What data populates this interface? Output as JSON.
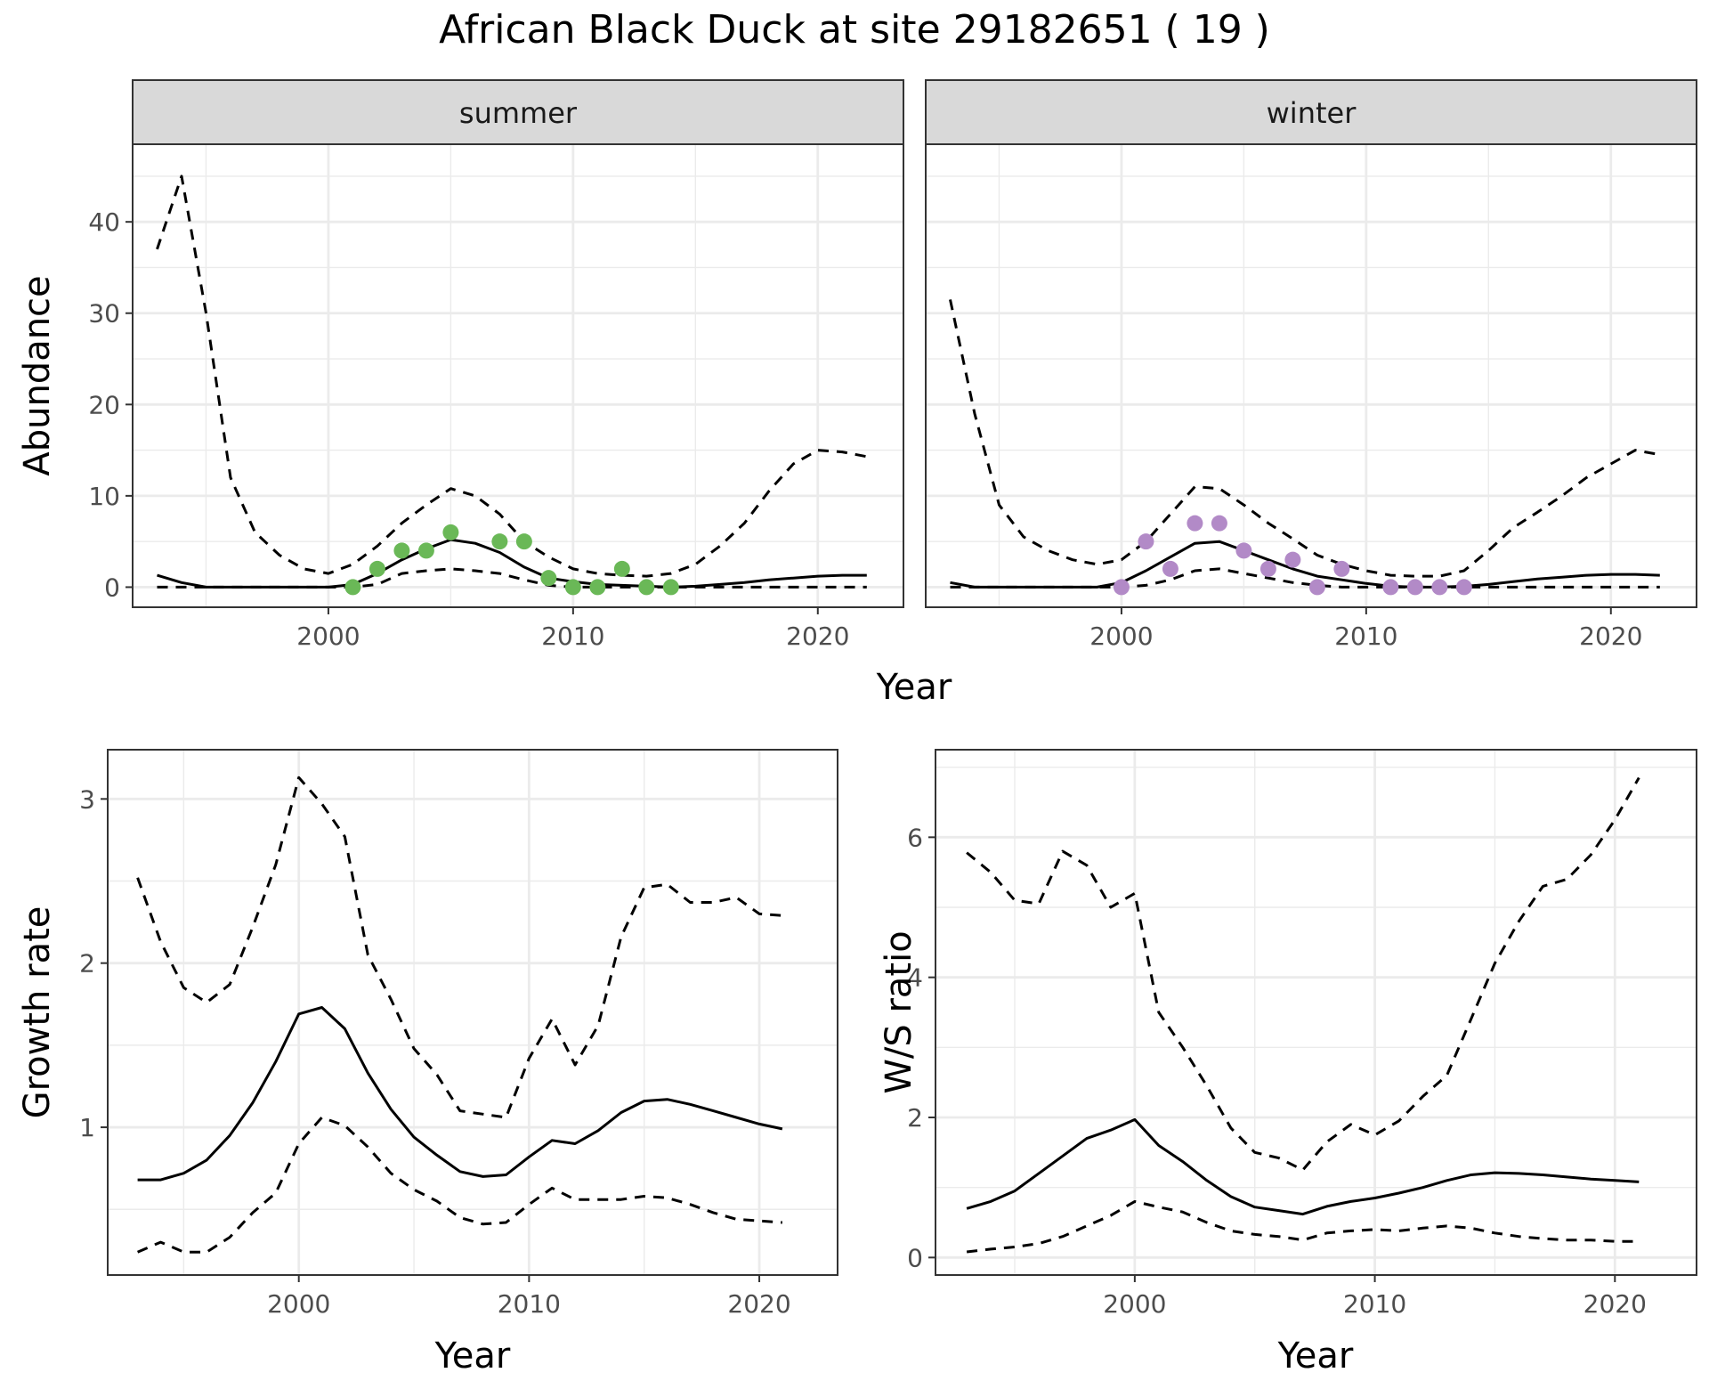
{
  "figure": {
    "title": "African Black Duck at site 29182651 ( 19 )",
    "colors": {
      "summer_points": "#6ab857",
      "winter_points": "#b28ac7",
      "line": "#000000",
      "strip_bg": "#d9d9d9",
      "grid": "#ebebeb"
    }
  },
  "chart_data": [
    {
      "type": "line",
      "facet": "summer",
      "xlabel": "Year",
      "ylabel": "Abundance",
      "xlim": [
        1992,
        2023.5
      ],
      "ylim": [
        -2.2,
        48.5
      ],
      "xticks": [
        2000,
        2010,
        2020
      ],
      "yticks": [
        0,
        10,
        20,
        30,
        40
      ],
      "grid": true,
      "x": [
        1993,
        1994,
        1995,
        1996,
        1997,
        1998,
        1999,
        2000,
        2001,
        2002,
        2003,
        2004,
        2005,
        2006,
        2007,
        2008,
        2009,
        2010,
        2011,
        2012,
        2013,
        2014,
        2015,
        2016,
        2017,
        2018,
        2019,
        2020,
        2021,
        2022
      ],
      "series": [
        {
          "style": "solid",
          "values": [
            1.3,
            0.5,
            0,
            0,
            0,
            0,
            0,
            0,
            0.3,
            1.5,
            3,
            4.2,
            5.2,
            4.8,
            3.8,
            2.2,
            1,
            0.6,
            0.3,
            0.2,
            0.1,
            0,
            0.1,
            0.3,
            0.5,
            0.8,
            1,
            1.2,
            1.3,
            1.3
          ]
        },
        {
          "style": "dashed",
          "values": [
            37,
            45,
            30,
            12,
            6,
            3.5,
            2,
            1.5,
            2.5,
            4.5,
            7,
            9,
            10.8,
            10,
            8,
            5,
            3.3,
            2,
            1.5,
            1.3,
            1.2,
            1.5,
            2.5,
            4.5,
            7,
            10.5,
            13.5,
            15,
            14.8,
            14.3
          ]
        },
        {
          "style": "dashed",
          "values": [
            0,
            0,
            0,
            0,
            0,
            0,
            0,
            0,
            0,
            0.3,
            1.5,
            1.8,
            2,
            1.8,
            1.5,
            0.8,
            0.2,
            0,
            0,
            0,
            0,
            0,
            0,
            0,
            0,
            0,
            0,
            0,
            0,
            0
          ]
        },
        {
          "style": "points",
          "color": "#6ab857",
          "x": [
            2001,
            2002,
            2003,
            2004,
            2005,
            2007,
            2008,
            2009,
            2010,
            2011,
            2012,
            2013,
            2014
          ],
          "values": [
            0,
            2,
            4,
            4,
            6,
            5,
            5,
            1,
            0,
            0,
            2,
            0,
            0
          ]
        }
      ]
    },
    {
      "type": "line",
      "facet": "winter",
      "xlabel": "Year",
      "ylabel": "Abundance",
      "xlim": [
        1992,
        2023.5
      ],
      "ylim": [
        -2.2,
        48.5
      ],
      "xticks": [
        2000,
        2010,
        2020
      ],
      "yticks": [
        0,
        10,
        20,
        30,
        40
      ],
      "grid": true,
      "x": [
        1993,
        1994,
        1995,
        1996,
        1997,
        1998,
        1999,
        2000,
        2001,
        2002,
        2003,
        2004,
        2005,
        2006,
        2007,
        2008,
        2009,
        2010,
        2011,
        2012,
        2013,
        2014,
        2015,
        2016,
        2017,
        2018,
        2019,
        2020,
        2021,
        2022
      ],
      "series": [
        {
          "style": "solid",
          "values": [
            0.5,
            0,
            0,
            0,
            0,
            0,
            0,
            0.5,
            1.8,
            3.3,
            4.8,
            5,
            4,
            3,
            2,
            1.2,
            0.8,
            0.4,
            0.1,
            0,
            0,
            0.1,
            0.3,
            0.6,
            0.9,
            1.1,
            1.3,
            1.4,
            1.4,
            1.3
          ]
        },
        {
          "style": "dashed",
          "values": [
            31.5,
            19,
            9,
            5.5,
            4,
            3,
            2.5,
            3,
            5,
            8,
            11,
            10.8,
            9,
            7,
            5.3,
            3.5,
            2.5,
            1.8,
            1.3,
            1.2,
            1.2,
            1.8,
            4,
            6.5,
            8.2,
            10,
            12,
            13.5,
            15,
            14.5
          ]
        },
        {
          "style": "dashed",
          "values": [
            0,
            0,
            0,
            0,
            0,
            0,
            0,
            0,
            0.2,
            0.8,
            1.8,
            2,
            1.5,
            1,
            0.5,
            0.2,
            0,
            0,
            0,
            0,
            0,
            0,
            0,
            0,
            0,
            0,
            0,
            0,
            0,
            0
          ]
        },
        {
          "style": "points",
          "color": "#b28ac7",
          "x": [
            2000,
            2001,
            2002,
            2003,
            2004,
            2005,
            2006,
            2007,
            2008,
            2009,
            2011,
            2012,
            2013,
            2014
          ],
          "values": [
            0,
            5,
            2,
            7,
            7,
            4,
            2,
            3,
            0,
            2,
            0,
            0,
            0,
            0
          ]
        }
      ]
    },
    {
      "type": "line",
      "xlabel": "Year",
      "ylabel": "Growth rate",
      "xlim": [
        1991.7,
        2023.4
      ],
      "ylim": [
        0.1,
        3.3
      ],
      "xticks": [
        2000,
        2010,
        2020
      ],
      "yticks": [
        1,
        2,
        3
      ],
      "grid": true,
      "x": [
        1993,
        1994,
        1995,
        1996,
        1997,
        1998,
        1999,
        2000,
        2001,
        2002,
        2003,
        2004,
        2005,
        2006,
        2007,
        2008,
        2009,
        2010,
        2011,
        2012,
        2013,
        2014,
        2015,
        2016,
        2017,
        2018,
        2019,
        2020,
        2021
      ],
      "series": [
        {
          "style": "solid",
          "values": [
            0.68,
            0.68,
            0.72,
            0.8,
            0.95,
            1.15,
            1.4,
            1.69,
            1.73,
            1.6,
            1.33,
            1.11,
            0.94,
            0.83,
            0.73,
            0.7,
            0.71,
            0.82,
            0.92,
            0.9,
            0.98,
            1.09,
            1.16,
            1.17,
            1.14,
            1.1,
            1.06,
            1.02,
            0.99
          ]
        },
        {
          "style": "dashed",
          "values": [
            2.52,
            2.13,
            1.85,
            1.76,
            1.87,
            2.22,
            2.6,
            3.13,
            2.97,
            2.77,
            2.05,
            1.78,
            1.48,
            1.32,
            1.1,
            1.08,
            1.06,
            1.42,
            1.66,
            1.38,
            1.62,
            2.16,
            2.46,
            2.48,
            2.37,
            2.37,
            2.4,
            2.3,
            2.29
          ]
        },
        {
          "style": "dashed",
          "values": [
            0.24,
            0.3,
            0.24,
            0.24,
            0.33,
            0.48,
            0.6,
            0.9,
            1.06,
            1.01,
            0.88,
            0.72,
            0.62,
            0.55,
            0.45,
            0.41,
            0.42,
            0.53,
            0.63,
            0.56,
            0.56,
            0.56,
            0.58,
            0.57,
            0.53,
            0.48,
            0.44,
            0.43,
            0.42
          ]
        }
      ]
    },
    {
      "type": "line",
      "xlabel": "Year",
      "ylabel": "W/S ratio",
      "xlim": [
        1991.7,
        2023.4
      ],
      "ylim": [
        -0.25,
        7.25
      ],
      "xticks": [
        2000,
        2010,
        2020
      ],
      "yticks": [
        0,
        2,
        4,
        6
      ],
      "grid": true,
      "x": [
        1993,
        1994,
        1995,
        1996,
        1997,
        1998,
        1999,
        2000,
        2001,
        2002,
        2003,
        2004,
        2005,
        2006,
        2007,
        2008,
        2009,
        2010,
        2011,
        2012,
        2013,
        2014,
        2015,
        2016,
        2017,
        2018,
        2019,
        2020,
        2021
      ],
      "series": [
        {
          "style": "solid",
          "values": [
            0.7,
            0.8,
            0.95,
            1.2,
            1.45,
            1.7,
            1.82,
            1.97,
            1.6,
            1.37,
            1.1,
            0.87,
            0.72,
            0.67,
            0.62,
            0.73,
            0.8,
            0.85,
            0.92,
            1,
            1.1,
            1.18,
            1.21,
            1.2,
            1.18,
            1.15,
            1.12,
            1.1,
            1.08
          ]
        },
        {
          "style": "dashed",
          "values": [
            5.78,
            5.5,
            5.1,
            5.05,
            5.8,
            5.6,
            5,
            5.2,
            3.5,
            3,
            2.45,
            1.85,
            1.5,
            1.42,
            1.25,
            1.65,
            1.9,
            1.75,
            1.95,
            2.3,
            2.6,
            3.4,
            4.2,
            4.8,
            5.3,
            5.4,
            5.75,
            6.25,
            6.85
          ]
        },
        {
          "style": "dashed",
          "values": [
            0.08,
            0.12,
            0.15,
            0.2,
            0.3,
            0.45,
            0.6,
            0.8,
            0.72,
            0.65,
            0.5,
            0.38,
            0.33,
            0.3,
            0.25,
            0.35,
            0.38,
            0.4,
            0.38,
            0.42,
            0.45,
            0.42,
            0.35,
            0.3,
            0.27,
            0.25,
            0.25,
            0.23,
            0.23
          ]
        }
      ]
    }
  ]
}
